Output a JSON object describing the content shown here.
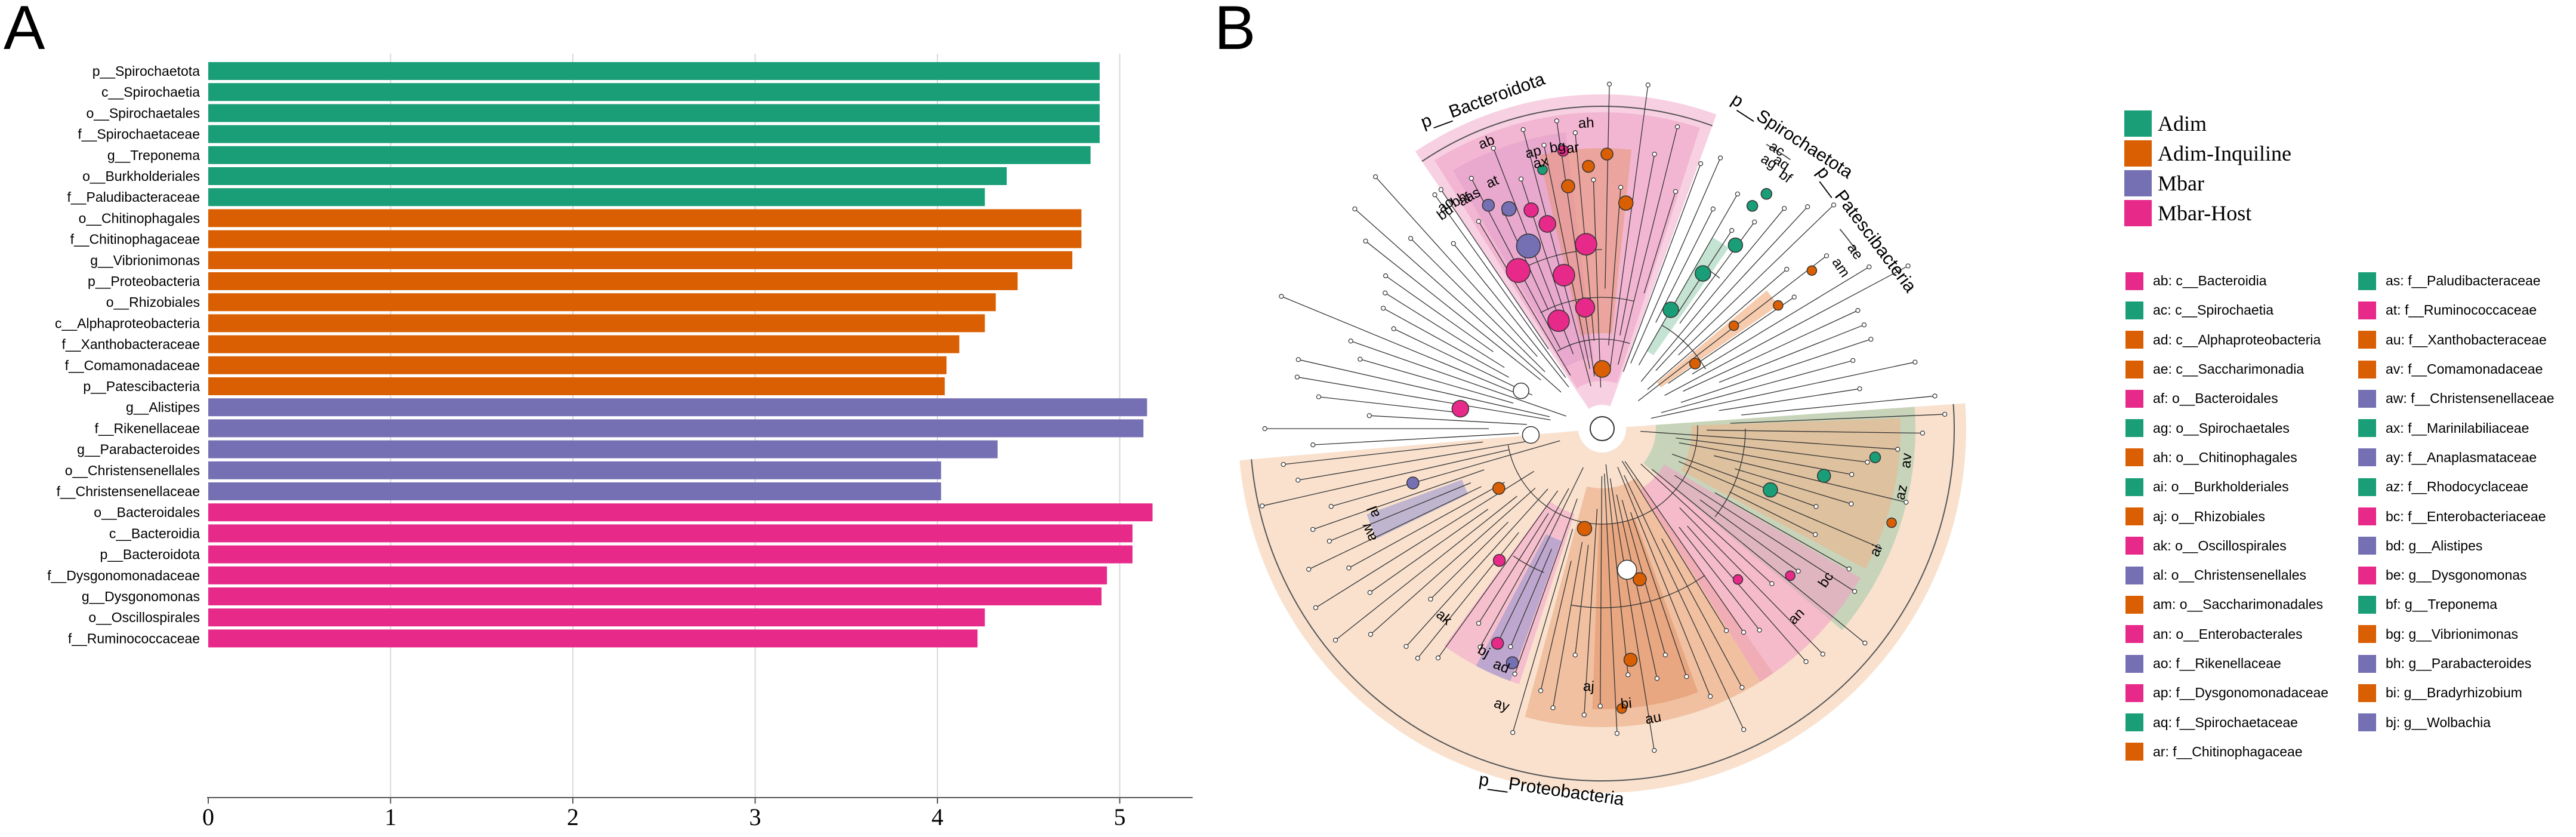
{
  "panel_a": {
    "letter": "A",
    "chart_data": {
      "type": "bar",
      "orientation": "horizontal",
      "xlim": [
        0,
        5.4
      ],
      "xticks": [
        "0",
        "1",
        "2",
        "3",
        "4",
        "5"
      ],
      "xlabel": "",
      "ylabel": "",
      "grid": "vertical lines at ticks",
      "bars": [
        {
          "label": "p__Spirochaetota",
          "value": 4.89,
          "group": "Adim"
        },
        {
          "label": "c__Spirochaetia",
          "value": 4.89,
          "group": "Adim"
        },
        {
          "label": "o__Spirochaetales",
          "value": 4.89,
          "group": "Adim"
        },
        {
          "label": "f__Spirochaetaceae",
          "value": 4.89,
          "group": "Adim"
        },
        {
          "label": "g__Treponema",
          "value": 4.84,
          "group": "Adim"
        },
        {
          "label": "o__Burkholderiales",
          "value": 4.38,
          "group": "Adim"
        },
        {
          "label": "f__Paludibacteraceae",
          "value": 4.26,
          "group": "Adim"
        },
        {
          "label": "o__Chitinophagales",
          "value": 4.79,
          "group": "Adim-Inquiline"
        },
        {
          "label": "f__Chitinophagaceae",
          "value": 4.79,
          "group": "Adim-Inquiline"
        },
        {
          "label": "g__Vibrionimonas",
          "value": 4.74,
          "group": "Adim-Inquiline"
        },
        {
          "label": "p__Proteobacteria",
          "value": 4.44,
          "group": "Adim-Inquiline"
        },
        {
          "label": "o__Rhizobiales",
          "value": 4.32,
          "group": "Adim-Inquiline"
        },
        {
          "label": "c__Alphaproteobacteria",
          "value": 4.26,
          "group": "Adim-Inquiline"
        },
        {
          "label": "f__Xanthobacteraceae",
          "value": 4.12,
          "group": "Adim-Inquiline"
        },
        {
          "label": "f__Comamonadaceae",
          "value": 4.05,
          "group": "Adim-Inquiline"
        },
        {
          "label": "p__Patescibacteria",
          "value": 4.04,
          "group": "Adim-Inquiline"
        },
        {
          "label": "g__Alistipes",
          "value": 5.15,
          "group": "Mbar"
        },
        {
          "label": "f__Rikenellaceae",
          "value": 5.13,
          "group": "Mbar"
        },
        {
          "label": "g__Parabacteroides",
          "value": 4.33,
          "group": "Mbar"
        },
        {
          "label": "o__Christensenellales",
          "value": 4.02,
          "group": "Mbar"
        },
        {
          "label": "f__Christensenellaceae",
          "value": 4.02,
          "group": "Mbar"
        },
        {
          "label": "o__Bacteroidales",
          "value": 5.18,
          "group": "Mbar-Host"
        },
        {
          "label": "c__Bacteroidia",
          "value": 5.07,
          "group": "Mbar-Host"
        },
        {
          "label": "p__Bacteroidota",
          "value": 5.07,
          "group": "Mbar-Host"
        },
        {
          "label": "f__Dysgonomonadaceae",
          "value": 4.93,
          "group": "Mbar-Host"
        },
        {
          "label": "g__Dysgonomonas",
          "value": 4.9,
          "group": "Mbar-Host"
        },
        {
          "label": "o__Oscillospirales",
          "value": 4.26,
          "group": "Mbar-Host"
        },
        {
          "label": "f__Ruminococcaceae",
          "value": 4.22,
          "group": "Mbar-Host"
        }
      ]
    }
  },
  "panel_b": {
    "letter": "B",
    "legend": [
      {
        "name": "Adim",
        "color": "#1a9e77"
      },
      {
        "name": "Adim-Inquiline",
        "color": "#d95f02"
      },
      {
        "name": "Mbar",
        "color": "#7570b3"
      },
      {
        "name": "Mbar-Host",
        "color": "#e7298a"
      }
    ],
    "phylum_labels": [
      "p__Bacteroidota",
      "p__Spirochaetota",
      "p__Patescibacteria",
      "p__Proteobacteria"
    ],
    "clade_labels": [
      "ab",
      "ah",
      "ag",
      "ac",
      "aq",
      "bf",
      "ae",
      "am",
      "ax",
      "ap",
      "bg",
      "ar",
      "af",
      "at",
      "ao",
      "bd",
      "bh",
      "as",
      "aw",
      "al",
      "ak",
      "ad",
      "bj",
      "aj",
      "bi",
      "au",
      "ay",
      "an",
      "bc",
      "av",
      "az",
      "ai"
    ],
    "key_col1": [
      {
        "text": "ab: c__Bacteroidia",
        "group": "Mbar-Host"
      },
      {
        "text": "ac: c__Spirochaetia",
        "group": "Adim"
      },
      {
        "text": "ad: c__Alphaproteobacteria",
        "group": "Adim-Inquiline"
      },
      {
        "text": "ae: c__Saccharimonadia",
        "group": "Adim-Inquiline"
      },
      {
        "text": "af: o__Bacteroidales",
        "group": "Mbar-Host"
      },
      {
        "text": "ag: o__Spirochaetales",
        "group": "Adim"
      },
      {
        "text": "ah: o__Chitinophagales",
        "group": "Adim-Inquiline"
      },
      {
        "text": "ai: o__Burkholderiales",
        "group": "Adim"
      },
      {
        "text": "aj: o__Rhizobiales",
        "group": "Adim-Inquiline"
      },
      {
        "text": "ak: o__Oscillospirales",
        "group": "Mbar-Host"
      },
      {
        "text": "al: o__Christensenellales",
        "group": "Mbar"
      },
      {
        "text": "am: o__Saccharimonadales",
        "group": "Adim-Inquiline"
      },
      {
        "text": "an: o__Enterobacterales",
        "group": "Mbar-Host"
      },
      {
        "text": "ao: f__Rikenellaceae",
        "group": "Mbar"
      },
      {
        "text": "ap: f__Dysgonomonadaceae",
        "group": "Mbar-Host"
      },
      {
        "text": "aq: f__Spirochaetaceae",
        "group": "Adim"
      },
      {
        "text": "ar: f__Chitinophagaceae",
        "group": "Adim-Inquiline"
      }
    ],
    "key_col2": [
      {
        "text": "as: f__Paludibacteraceae",
        "group": "Adim"
      },
      {
        "text": "at: f__Ruminococcaceae",
        "group": "Mbar-Host"
      },
      {
        "text": "au: f__Xanthobacteraceae",
        "group": "Adim-Inquiline"
      },
      {
        "text": "av: f__Comamonadaceae",
        "group": "Adim-Inquiline"
      },
      {
        "text": "aw: f__Christensenellaceae",
        "group": "Mbar"
      },
      {
        "text": "ax: f__Marinilabiliaceae",
        "group": "Adim"
      },
      {
        "text": "ay: f__Anaplasmataceae",
        "group": "Mbar"
      },
      {
        "text": "az: f__Rhodocyclaceae",
        "group": "Adim"
      },
      {
        "text": "bc: f__Enterobacteriaceae",
        "group": "Mbar-Host"
      },
      {
        "text": "bd: g__Alistipes",
        "group": "Mbar"
      },
      {
        "text": "be: g__Dysgonomonas",
        "group": "Mbar-Host"
      },
      {
        "text": "bf: g__Treponema",
        "group": "Adim"
      },
      {
        "text": "bg: g__Vibrionimonas",
        "group": "Adim-Inquiline"
      },
      {
        "text": "bh: g__Parabacteroides",
        "group": "Mbar"
      },
      {
        "text": "bi: g__Bradyrhizobium",
        "group": "Adim-Inquiline"
      },
      {
        "text": "bj: g__Wolbachia",
        "group": "Mbar"
      }
    ]
  }
}
